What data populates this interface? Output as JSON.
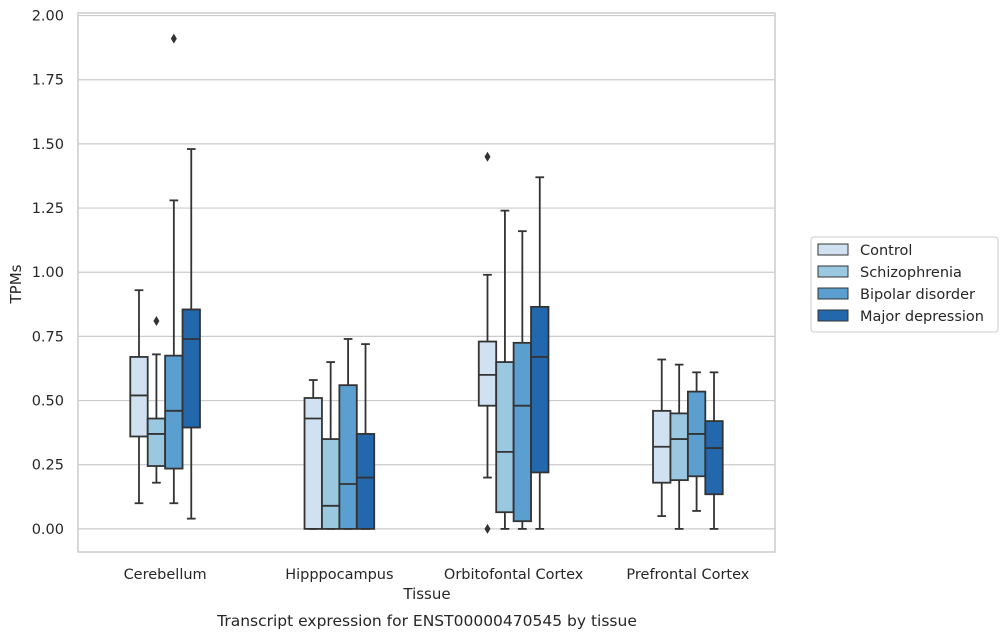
{
  "caption": "Transcript expression for ENST00000470545 by tissue",
  "chart_data": {
    "type": "box",
    "xlabel": "Tissue",
    "ylabel": "TPMs",
    "ylim": [
      -0.09,
      2.01
    ],
    "yticks": [
      "0.00",
      "0.25",
      "0.50",
      "0.75",
      "1.00",
      "1.25",
      "1.50",
      "1.75",
      "2.00"
    ],
    "grid": "horizontal",
    "legend_position": "right-outside",
    "categories": [
      "Cerebellum",
      "Hipppocampus",
      "Orbitofontal Cortex",
      "Prefrontal Cortex"
    ],
    "series": [
      {
        "name": "Control",
        "color": "#d0e1f2",
        "boxes": [
          {
            "q1": 0.36,
            "median": 0.52,
            "q3": 0.67,
            "whisker_low": 0.1,
            "whisker_high": 0.93,
            "outliers": []
          },
          {
            "q1": 0.0,
            "median": 0.43,
            "q3": 0.51,
            "whisker_low": 0.0,
            "whisker_high": 0.58,
            "outliers": []
          },
          {
            "q1": 0.48,
            "median": 0.6,
            "q3": 0.73,
            "whisker_low": 0.2,
            "whisker_high": 0.99,
            "outliers": [
              1.45,
              0.0
            ]
          },
          {
            "q1": 0.18,
            "median": 0.32,
            "q3": 0.46,
            "whisker_low": 0.05,
            "whisker_high": 0.66,
            "outliers": []
          }
        ]
      },
      {
        "name": "Schizophrenia",
        "color": "#9ac8e0",
        "boxes": [
          {
            "q1": 0.245,
            "median": 0.37,
            "q3": 0.43,
            "whisker_low": 0.18,
            "whisker_high": 0.68,
            "outliers": [
              0.81
            ]
          },
          {
            "q1": 0.0,
            "median": 0.09,
            "q3": 0.35,
            "whisker_low": 0.0,
            "whisker_high": 0.65,
            "outliers": []
          },
          {
            "q1": 0.065,
            "median": 0.3,
            "q3": 0.65,
            "whisker_low": 0.0,
            "whisker_high": 1.24,
            "outliers": []
          },
          {
            "q1": 0.19,
            "median": 0.35,
            "q3": 0.45,
            "whisker_low": 0.0,
            "whisker_high": 0.64,
            "outliers": []
          }
        ]
      },
      {
        "name": "Bipolar disorder",
        "color": "#5a9fcf",
        "boxes": [
          {
            "q1": 0.235,
            "median": 0.46,
            "q3": 0.675,
            "whisker_low": 0.1,
            "whisker_high": 1.28,
            "outliers": [
              1.91
            ]
          },
          {
            "q1": 0.0,
            "median": 0.175,
            "q3": 0.56,
            "whisker_low": 0.0,
            "whisker_high": 0.74,
            "outliers": []
          },
          {
            "q1": 0.03,
            "median": 0.48,
            "q3": 0.725,
            "whisker_low": 0.0,
            "whisker_high": 1.16,
            "outliers": []
          },
          {
            "q1": 0.205,
            "median": 0.37,
            "q3": 0.535,
            "whisker_low": 0.07,
            "whisker_high": 0.61,
            "outliers": []
          }
        ]
      },
      {
        "name": "Major depression",
        "color": "#2367ad",
        "boxes": [
          {
            "q1": 0.395,
            "median": 0.74,
            "q3": 0.855,
            "whisker_low": 0.04,
            "whisker_high": 1.48,
            "outliers": []
          },
          {
            "q1": 0.0,
            "median": 0.2,
            "q3": 0.37,
            "whisker_low": 0.0,
            "whisker_high": 0.72,
            "outliers": []
          },
          {
            "q1": 0.22,
            "median": 0.67,
            "q3": 0.865,
            "whisker_low": 0.0,
            "whisker_high": 1.37,
            "outliers": []
          },
          {
            "q1": 0.135,
            "median": 0.315,
            "q3": 0.42,
            "whisker_low": 0.0,
            "whisker_high": 0.61,
            "outliers": []
          }
        ]
      }
    ]
  }
}
